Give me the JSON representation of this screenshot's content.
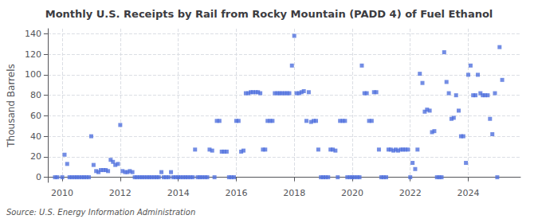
{
  "chart_data": {
    "type": "scatter",
    "title": "Monthly U.S. Receipts by Rail from Rocky Mountain (PADD 4) of Fuel Ethanol",
    "ylabel": "Thousand Barrels",
    "annotations": [
      "Source: U.S. Energy Information Administration"
    ],
    "marker": "square",
    "grid": true,
    "xlim": [
      2009.5,
      2025.8
    ],
    "ylim": [
      -5,
      145
    ],
    "xticks": [
      2010,
      2012,
      2014,
      2016,
      2018,
      2020,
      2022,
      2024
    ],
    "yticks": [
      0,
      20,
      40,
      60,
      80,
      100,
      120,
      140
    ],
    "x": [
      2009.75,
      2009.83,
      2010.0,
      2010.08,
      2010.17,
      2010.25,
      2010.33,
      2010.42,
      2010.5,
      2010.58,
      2010.67,
      2010.75,
      2010.83,
      2010.92,
      2011.0,
      2011.08,
      2011.17,
      2011.25,
      2011.33,
      2011.42,
      2011.5,
      2011.58,
      2011.67,
      2011.75,
      2011.83,
      2011.92,
      2012.0,
      2012.08,
      2012.17,
      2012.25,
      2012.33,
      2012.42,
      2012.5,
      2012.58,
      2012.67,
      2012.75,
      2012.83,
      2012.92,
      2013.0,
      2013.08,
      2013.17,
      2013.25,
      2013.33,
      2013.42,
      2013.5,
      2013.58,
      2013.67,
      2013.75,
      2013.83,
      2013.92,
      2014.0,
      2014.08,
      2014.17,
      2014.25,
      2014.33,
      2014.42,
      2014.5,
      2014.58,
      2014.67,
      2014.75,
      2014.83,
      2014.92,
      2015.0,
      2015.08,
      2015.17,
      2015.25,
      2015.33,
      2015.42,
      2015.5,
      2015.58,
      2015.67,
      2015.75,
      2015.83,
      2015.92,
      2016.0,
      2016.08,
      2016.17,
      2016.25,
      2016.33,
      2016.42,
      2016.5,
      2016.58,
      2016.67,
      2016.75,
      2016.83,
      2016.92,
      2017.0,
      2017.08,
      2017.17,
      2017.25,
      2017.33,
      2017.42,
      2017.5,
      2017.58,
      2017.67,
      2017.75,
      2017.83,
      2017.92,
      2018.0,
      2018.08,
      2018.17,
      2018.25,
      2018.33,
      2018.42,
      2018.5,
      2018.58,
      2018.67,
      2018.75,
      2018.83,
      2018.92,
      2019.0,
      2019.08,
      2019.17,
      2019.25,
      2019.33,
      2019.42,
      2019.5,
      2019.58,
      2019.67,
      2019.75,
      2019.83,
      2019.92,
      2020.0,
      2020.08,
      2020.17,
      2020.25,
      2020.33,
      2020.42,
      2020.5,
      2020.58,
      2020.67,
      2020.75,
      2020.83,
      2020.92,
      2021.0,
      2021.08,
      2021.17,
      2021.25,
      2021.33,
      2021.42,
      2021.5,
      2021.58,
      2021.67,
      2021.75,
      2021.83,
      2021.92,
      2022.0,
      2022.08,
      2022.17,
      2022.25,
      2022.33,
      2022.42,
      2022.5,
      2022.58,
      2022.67,
      2022.75,
      2022.83,
      2022.92,
      2023.0,
      2023.08,
      2023.17,
      2023.25,
      2023.33,
      2023.42,
      2023.5,
      2023.58,
      2023.67,
      2023.75,
      2023.83,
      2023.92,
      2024.0,
      2024.08,
      2024.17,
      2024.25,
      2024.33,
      2024.42,
      2024.5,
      2024.58,
      2024.67,
      2024.75,
      2024.83,
      2024.92,
      2025.0,
      2025.08,
      2025.17
    ],
    "values": [
      0,
      0,
      0,
      22,
      13,
      0,
      0,
      0,
      0,
      0,
      0,
      0,
      0,
      0,
      40,
      12,
      6,
      5,
      7,
      7,
      7,
      6,
      17,
      15,
      12,
      13,
      51,
      6,
      5,
      5,
      6,
      5,
      0,
      0,
      0,
      0,
      0,
      0,
      0,
      0,
      0,
      0,
      0,
      5,
      0,
      0,
      0,
      5,
      0,
      0,
      0,
      0,
      0,
      0,
      0,
      0,
      0,
      27,
      0,
      0,
      0,
      0,
      0,
      27,
      26,
      0,
      55,
      55,
      25,
      25,
      25,
      0,
      0,
      0,
      55,
      55,
      25,
      26,
      82,
      82,
      83,
      83,
      83,
      83,
      82,
      27,
      27,
      55,
      55,
      55,
      82,
      82,
      82,
      82,
      82,
      82,
      82,
      109,
      138,
      82,
      82,
      83,
      84,
      55,
      83,
      54,
      55,
      55,
      27,
      0,
      0,
      0,
      0,
      27,
      27,
      26,
      0,
      55,
      55,
      55,
      0,
      0,
      0,
      0,
      0,
      0,
      109,
      82,
      82,
      55,
      55,
      83,
      83,
      27,
      0,
      0,
      0,
      27,
      27,
      26,
      27,
      26,
      27,
      27,
      27,
      27,
      0,
      14,
      8,
      27,
      101,
      92,
      64,
      66,
      65,
      44,
      45,
      0,
      0,
      0,
      122,
      93,
      82,
      57,
      58,
      80,
      65,
      40,
      40,
      14,
      100,
      109,
      80,
      80,
      100,
      82,
      80,
      80,
      80,
      57,
      42,
      82,
      0,
      127,
      95
    ]
  }
}
